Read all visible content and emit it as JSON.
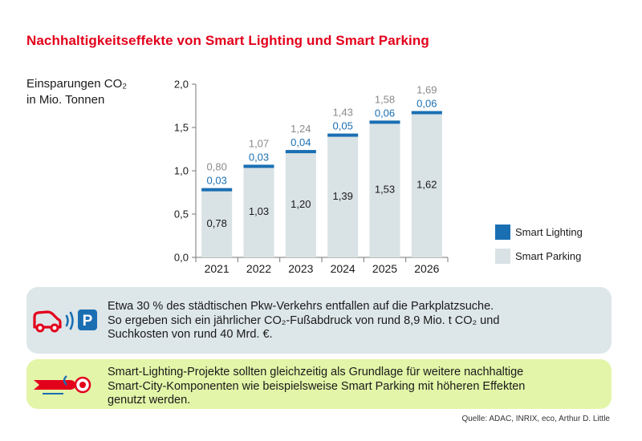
{
  "title": "Nachhaltigkeitseffekte von Smart Lighting und Smart Parking",
  "ylabel_lines": [
    "Einsparungen CO₂",
    "in Mio. Tonnen"
  ],
  "colors": {
    "title": "#e3001b",
    "smart_lighting": "#1a6fb3",
    "smart_parking": "#d9e2e5",
    "total_label": "#8a8a8a",
    "lighting_label": "#1a6fb3",
    "panel_1": "#dde6e9",
    "panel_2": "#e3f5a8",
    "car_icon": "#e3001b",
    "parking_icon": "#1a6fb3"
  },
  "chart_data": {
    "type": "bar",
    "stacked": true,
    "categories": [
      "2021",
      "2022",
      "2023",
      "2024",
      "2025",
      "2026"
    ],
    "series": [
      {
        "name": "Smart Parking",
        "values": [
          0.78,
          1.03,
          1.2,
          1.39,
          1.53,
          1.62
        ],
        "labels": [
          "0,78",
          "1,03",
          "1,20",
          "1,39",
          "1,53",
          "1,62"
        ]
      },
      {
        "name": "Smart Lighting",
        "values": [
          0.03,
          0.03,
          0.04,
          0.05,
          0.06,
          0.06
        ],
        "labels": [
          "0,03",
          "0,03",
          "0,04",
          "0,05",
          "0,06",
          "0,06"
        ]
      }
    ],
    "totals": [
      0.8,
      1.07,
      1.24,
      1.43,
      1.58,
      1.69
    ],
    "total_labels": [
      "0,80",
      "1,07",
      "1,24",
      "1,43",
      "1,58",
      "1,69"
    ],
    "ylim": [
      0,
      2.0
    ],
    "yticks": [
      "0,0",
      "0,5",
      "1,0",
      "1,5",
      "2,0"
    ],
    "ytick_values": [
      0,
      0.5,
      1.0,
      1.5,
      2.0
    ],
    "grid": false,
    "legend_position": "right"
  },
  "legend": {
    "smart_lighting": "Smart Lighting",
    "smart_parking": "Smart Parking"
  },
  "info_panels": {
    "parking": {
      "icon": "car-signal-parking-icon",
      "icon_letter": "P",
      "lines": [
        "Etwa 30 % des städtischen Pkw-Verkehrs entfallen auf die Parkplatzsuche.",
        "So ergeben sich ein jährlicher CO₂-Fußabdruck von rund 8,9 Mio. t CO₂ und",
        "Suchkosten von rund 40 Mrd. €."
      ]
    },
    "lighting": {
      "icon": "street-lamp-icon",
      "lines": [
        "Smart-Lighting-Projekte sollten gleichzeitig als Grundlage für weitere nachhaltige",
        "Smart-City-Komponenten wie beispielsweise Smart Parking mit höheren Effekten",
        "genutzt werden."
      ]
    }
  },
  "source": "Quelle: ADAC, INRIX, eco, Arthur D. Little"
}
